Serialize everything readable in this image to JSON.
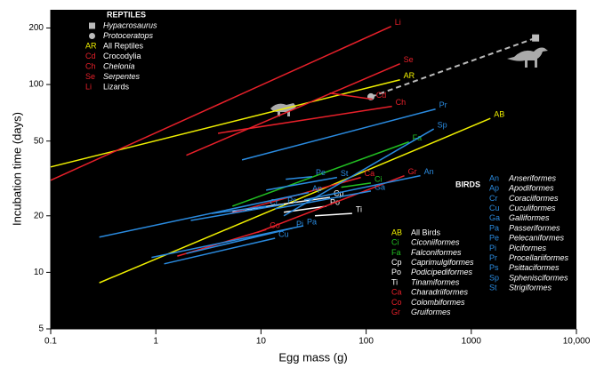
{
  "chart_data": {
    "type": "line",
    "xlabel": "Egg mass (g)",
    "ylabel": "Incubation time (days)",
    "xscale": "log",
    "yscale": "log",
    "xlim": [
      0.1,
      10000
    ],
    "ylim": [
      5,
      250
    ],
    "xticks": [
      0.1,
      1,
      10,
      100,
      1000,
      {
        "value": 10000,
        "label": "10,000"
      }
    ],
    "yticks": [
      5,
      10,
      20,
      50,
      100,
      200
    ],
    "groups": [
      {
        "title": "REPTILES",
        "points": [
          {
            "name": "Hypacrosaurus",
            "marker": "square",
            "color": "#bbbbbb",
            "x": 4090,
            "y": 177
          },
          {
            "name": "Protoceratops",
            "marker": "circle",
            "color": "#bbbbbb",
            "x": 111,
            "y": 86
          }
        ],
        "series": [
          {
            "name": "AR",
            "label": "All Reptiles",
            "italic": false,
            "color": "#f0f000",
            "x": [
              0.1,
              210
            ],
            "values": [
              36.4,
              106
            ]
          },
          {
            "name": "Cd",
            "label": "Crocodylia",
            "italic": false,
            "color": "#e8202a",
            "x": [
              45,
              115
            ],
            "values": [
              90,
              83.5
            ]
          },
          {
            "name": "Ch",
            "label": "Chelonia",
            "italic": true,
            "color": "#e8202a",
            "x": [
              3.9,
              176
            ],
            "values": [
              55,
              76.5
            ]
          },
          {
            "name": "Se",
            "label": "Serpentes",
            "italic": true,
            "color": "#e8202a",
            "x": [
              1.95,
              210
            ],
            "values": [
              42,
              129
            ]
          },
          {
            "name": "Li",
            "label": "Lizards",
            "italic": false,
            "color": "#e8202a",
            "x": [
              0.1,
              173
            ],
            "values": [
              30.9,
              204
            ]
          }
        ]
      },
      {
        "title": "BIRDS",
        "series": [
          {
            "name": "AB",
            "label": "All Birds",
            "italic": false,
            "color": "#f0f000",
            "x": [
              0.29,
              1520
            ],
            "values": [
              8.8,
              66
            ]
          },
          {
            "name": "Ci",
            "label": "Ciconiiformes",
            "italic": true,
            "color": "#22c022",
            "x": [
              58,
              111
            ],
            "values": [
              28.4,
              29.9
            ]
          },
          {
            "name": "Fa",
            "label": "Falconiformes",
            "italic": true,
            "color": "#22c022",
            "x": [
              5.35,
              255
            ],
            "values": [
              22.5,
              49.5
            ]
          },
          {
            "name": "Cp",
            "label": "Caprimulgiformes",
            "italic": true,
            "color": "#ffffff",
            "x": [
              5.35,
              45.3
            ],
            "values": [
              21.1,
              25.1
            ]
          },
          {
            "name": "Po",
            "label": "Podicipediformes",
            "italic": true,
            "color": "#ffffff",
            "x": [
              16.5,
              41.9
            ],
            "values": [
              20.9,
              22.5
            ]
          },
          {
            "name": "Ti",
            "label": "Tinamiformes",
            "italic": true,
            "color": "#ffffff",
            "x": [
              32.6,
              73.6
            ],
            "values": [
              20,
              20.6
            ]
          },
          {
            "name": "Ca",
            "label": "Charadriiformes",
            "italic": true,
            "color": "#e8202a",
            "x": [
              5.1,
              89
            ],
            "values": [
              20.6,
              32
            ]
          },
          {
            "name": "Co",
            "label": "Colombiformes",
            "italic": true,
            "color": "#e8202a",
            "x": [
              1.6,
              11.2
            ],
            "values": [
              12.2,
              16.9
            ]
          },
          {
            "name": "Gr",
            "label": "Gruiformes",
            "italic": true,
            "color": "#e8202a",
            "x": [
              9.2,
              231
            ],
            "values": [
              16.3,
              32.7
            ]
          },
          {
            "name": "An",
            "label": "Anseriformes",
            "italic": true,
            "color": "#2a8be0",
            "x": [
              25.8,
              328
            ],
            "values": [
              24.3,
              32.7
            ]
          },
          {
            "name": "Ap",
            "label": "Apodiformes",
            "italic": true,
            "color": "#2a8be0",
            "x": [
              0.29,
              28.4
            ],
            "values": [
              15.4,
              26.6
            ]
          },
          {
            "name": "Cr",
            "label": "Coraciiformes",
            "italic": true,
            "color": "#2a8be0",
            "x": [
              3.4,
              11.2
            ],
            "values": [
              20.6,
              22.5
            ]
          },
          {
            "name": "Cu",
            "label": "Cuculiformes",
            "italic": true,
            "color": "#2a8be0",
            "x": [
              1.2,
              13.6
            ],
            "values": [
              11.1,
              15.2
            ]
          },
          {
            "name": "Ga",
            "label": "Galliformes",
            "italic": true,
            "color": "#2a8be0",
            "x": [
              13.6,
              111
            ],
            "values": [
              21.8,
              27.1
            ]
          },
          {
            "name": "Pa",
            "label": "Passeriformes",
            "italic": true,
            "color": "#2a8be0",
            "x": [
              0.91,
              25.3
            ],
            "values": [
              12,
              17.7
            ]
          },
          {
            "name": "Pe",
            "label": "Pelecaniformes",
            "italic": true,
            "color": "#2a8be0",
            "x": [
              17.2,
              30.7
            ],
            "values": [
              31.3,
              32.3
            ]
          },
          {
            "name": "Pi",
            "label": "Piciformes",
            "italic": true,
            "color": "#2a8be0",
            "x": [
              1.95,
              20
            ],
            "values": [
              12.6,
              17.2
            ]
          },
          {
            "name": "Pr",
            "label": "Procellariiformes",
            "italic": true,
            "color": "#2a8be0",
            "x": [
              6.6,
              457
            ],
            "values": [
              39.7,
              74
            ]
          },
          {
            "name": "Ps",
            "label": "Psittaciformes",
            "italic": true,
            "color": "#2a8be0",
            "x": [
              2.15,
              16.5
            ],
            "values": [
              18.9,
              23
            ]
          },
          {
            "name": "Sp",
            "label": "Sphenisciformes",
            "italic": true,
            "color": "#2a8be0",
            "x": [
              16.5,
              440
            ],
            "values": [
              20,
              58
            ]
          },
          {
            "name": "St",
            "label": "Strigiformes",
            "italic": true,
            "color": "#2a8be0",
            "x": [
              11.2,
              52.9
            ],
            "values": [
              27.4,
              32
            ]
          }
        ]
      }
    ]
  }
}
